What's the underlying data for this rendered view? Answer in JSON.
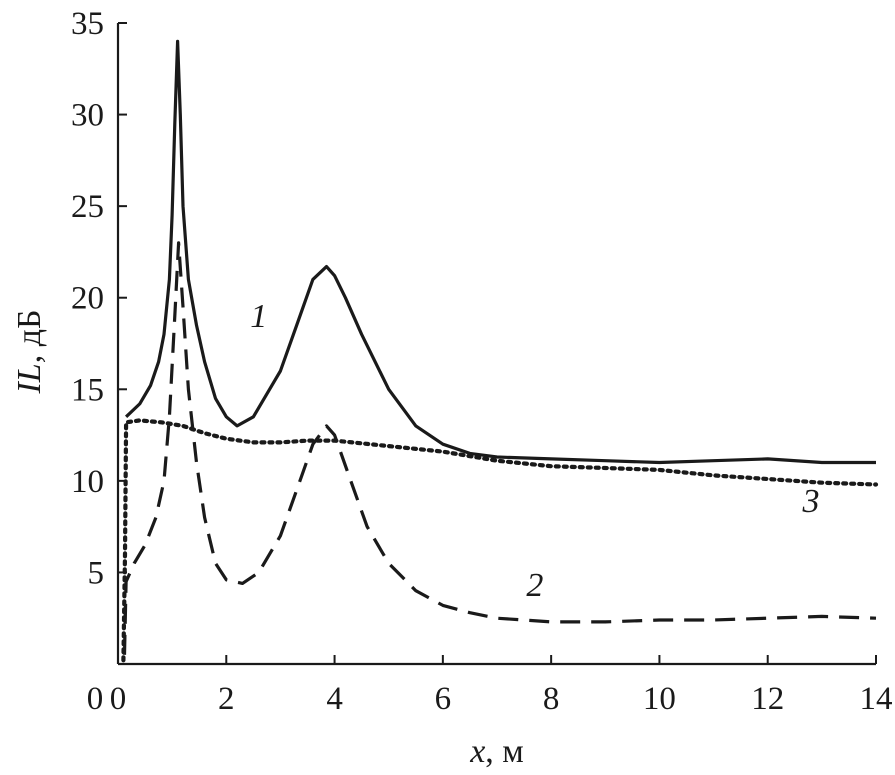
{
  "chart_data": {
    "type": "line",
    "xlabel_var": "x",
    "xlabel_unit": ", м",
    "ylabel_var": "IL",
    "ylabel_unit": ", дБ",
    "xlim": [
      0,
      14
    ],
    "ylim": [
      0,
      35
    ],
    "xticks": [
      0,
      2,
      4,
      6,
      8,
      10,
      12,
      14
    ],
    "yticks": [
      5,
      10,
      15,
      20,
      25,
      30,
      35
    ],
    "grid": false,
    "legend": "none",
    "series": [
      {
        "name": "1",
        "style": "solid",
        "label_at": [
          2.6,
          18.4
        ],
        "points": [
          [
            0.15,
            13.5
          ],
          [
            0.4,
            14.2
          ],
          [
            0.6,
            15.2
          ],
          [
            0.75,
            16.5
          ],
          [
            0.85,
            18.0
          ],
          [
            0.95,
            21.0
          ],
          [
            1.0,
            24.5
          ],
          [
            1.05,
            29.5
          ],
          [
            1.1,
            34.0
          ],
          [
            1.15,
            30.0
          ],
          [
            1.2,
            25.0
          ],
          [
            1.3,
            21.0
          ],
          [
            1.45,
            18.5
          ],
          [
            1.6,
            16.5
          ],
          [
            1.8,
            14.5
          ],
          [
            2.0,
            13.5
          ],
          [
            2.2,
            13.0
          ],
          [
            2.5,
            13.5
          ],
          [
            2.8,
            15.0
          ],
          [
            3.0,
            16.0
          ],
          [
            3.3,
            18.5
          ],
          [
            3.6,
            21.0
          ],
          [
            3.85,
            21.7
          ],
          [
            4.0,
            21.2
          ],
          [
            4.2,
            20.0
          ],
          [
            4.5,
            18.0
          ],
          [
            5.0,
            15.0
          ],
          [
            5.5,
            13.0
          ],
          [
            6.0,
            12.0
          ],
          [
            6.5,
            11.5
          ],
          [
            7.0,
            11.3
          ],
          [
            8.0,
            11.2
          ],
          [
            9.0,
            11.1
          ],
          [
            10.0,
            11.0
          ],
          [
            11.0,
            11.1
          ],
          [
            12.0,
            11.2
          ],
          [
            13.0,
            11.0
          ],
          [
            14.0,
            11.0
          ]
        ]
      },
      {
        "name": "2",
        "style": "dashed",
        "label_at": [
          7.7,
          3.7
        ],
        "points": [
          [
            0.12,
            0.5
          ],
          [
            0.15,
            4.5
          ],
          [
            0.3,
            5.5
          ],
          [
            0.5,
            6.5
          ],
          [
            0.7,
            8.0
          ],
          [
            0.85,
            10.0
          ],
          [
            0.95,
            13.5
          ],
          [
            1.05,
            19.0
          ],
          [
            1.12,
            23.0
          ],
          [
            1.2,
            19.5
          ],
          [
            1.3,
            15.0
          ],
          [
            1.45,
            11.0
          ],
          [
            1.6,
            8.0
          ],
          [
            1.8,
            5.5
          ],
          [
            2.0,
            4.6
          ],
          [
            2.3,
            4.4
          ],
          [
            2.6,
            5.0
          ],
          [
            3.0,
            7.0
          ],
          [
            3.3,
            9.5
          ],
          [
            3.6,
            12.0
          ],
          [
            3.85,
            13.0
          ],
          [
            4.0,
            12.5
          ],
          [
            4.3,
            10.0
          ],
          [
            4.6,
            7.5
          ],
          [
            5.0,
            5.5
          ],
          [
            5.5,
            4.0
          ],
          [
            6.0,
            3.2
          ],
          [
            6.5,
            2.8
          ],
          [
            7.0,
            2.5
          ],
          [
            8.0,
            2.3
          ],
          [
            9.0,
            2.3
          ],
          [
            10.0,
            2.4
          ],
          [
            11.0,
            2.4
          ],
          [
            12.0,
            2.5
          ],
          [
            13.0,
            2.6
          ],
          [
            14.0,
            2.5
          ]
        ]
      },
      {
        "name": "3",
        "style": "dotted",
        "label_at": [
          12.8,
          8.3
        ],
        "points": [
          [
            0.1,
            0.2
          ],
          [
            0.13,
            6.0
          ],
          [
            0.15,
            13.2
          ],
          [
            0.4,
            13.3
          ],
          [
            0.8,
            13.2
          ],
          [
            1.2,
            13.0
          ],
          [
            1.6,
            12.6
          ],
          [
            2.0,
            12.3
          ],
          [
            2.5,
            12.1
          ],
          [
            3.0,
            12.1
          ],
          [
            3.5,
            12.2
          ],
          [
            4.0,
            12.2
          ],
          [
            5.0,
            11.9
          ],
          [
            6.0,
            11.6
          ],
          [
            7.0,
            11.1
          ],
          [
            8.0,
            10.8
          ],
          [
            9.0,
            10.7
          ],
          [
            10.0,
            10.6
          ],
          [
            11.0,
            10.3
          ],
          [
            12.0,
            10.1
          ],
          [
            13.0,
            9.9
          ],
          [
            14.0,
            9.8
          ]
        ]
      }
    ]
  }
}
